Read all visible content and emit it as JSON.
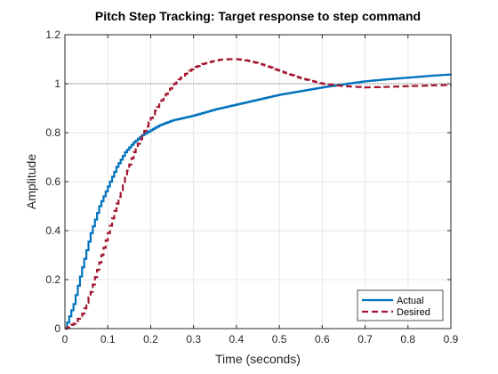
{
  "chart_data": {
    "type": "line",
    "title": "Pitch Step Tracking: Target response to step command",
    "xlabel": "Time (seconds)",
    "ylabel": "Amplitude",
    "xlim": [
      0,
      0.9
    ],
    "ylim": [
      0,
      1.2
    ],
    "xticks": [
      0,
      0.1,
      0.2,
      0.3,
      0.4,
      0.5,
      0.6,
      0.7,
      0.8,
      0.9
    ],
    "xtick_labels": [
      "0",
      "0.1",
      "0.2",
      "0.3",
      "0.4",
      "0.5",
      "0.6",
      "0.7",
      "0.8",
      "0.9"
    ],
    "yticks": [
      0,
      0.2,
      0.4,
      0.6,
      0.8,
      1,
      1.2
    ],
    "ytick_labels": [
      "0",
      "0.2",
      "0.4",
      "0.6",
      "0.8",
      "1",
      "1.2"
    ],
    "grid": true,
    "legend_position": "bottom-right",
    "reference_line": {
      "y": 1,
      "color": "#555555",
      "style": "dotted"
    },
    "series": [
      {
        "name": "Actual",
        "color": "#0072BD",
        "style": "solid-stairs",
        "x": [
          0,
          0.02,
          0.04,
          0.06,
          0.08,
          0.1,
          0.12,
          0.14,
          0.16,
          0.18,
          0.2,
          0.22,
          0.25,
          0.3,
          0.35,
          0.4,
          0.45,
          0.5,
          0.55,
          0.6,
          0.65,
          0.7,
          0.75,
          0.8,
          0.85,
          0.9
        ],
        "values": [
          0,
          0.1,
          0.25,
          0.39,
          0.5,
          0.58,
          0.66,
          0.72,
          0.76,
          0.79,
          0.81,
          0.83,
          0.85,
          0.87,
          0.895,
          0.915,
          0.935,
          0.955,
          0.97,
          0.985,
          0.998,
          1.01,
          1.018,
          1.025,
          1.032,
          1.038
        ]
      },
      {
        "name": "Desired",
        "color": "#A2142F",
        "style": "dashed-stairs",
        "x": [
          0,
          0.02,
          0.04,
          0.06,
          0.08,
          0.1,
          0.12,
          0.14,
          0.16,
          0.18,
          0.2,
          0.22,
          0.24,
          0.26,
          0.28,
          0.3,
          0.32,
          0.34,
          0.36,
          0.38,
          0.4,
          0.42,
          0.44,
          0.46,
          0.48,
          0.5,
          0.55,
          0.6,
          0.65,
          0.7,
          0.75,
          0.8,
          0.85,
          0.9
        ],
        "values": [
          0,
          0.02,
          0.06,
          0.15,
          0.27,
          0.39,
          0.51,
          0.62,
          0.72,
          0.79,
          0.86,
          0.92,
          0.97,
          1.01,
          1.04,
          1.065,
          1.08,
          1.09,
          1.098,
          1.1,
          1.1,
          1.096,
          1.088,
          1.078,
          1.066,
          1.052,
          1.022,
          1.0,
          0.99,
          0.985,
          0.987,
          0.99,
          0.993,
          0.995
        ]
      }
    ]
  }
}
